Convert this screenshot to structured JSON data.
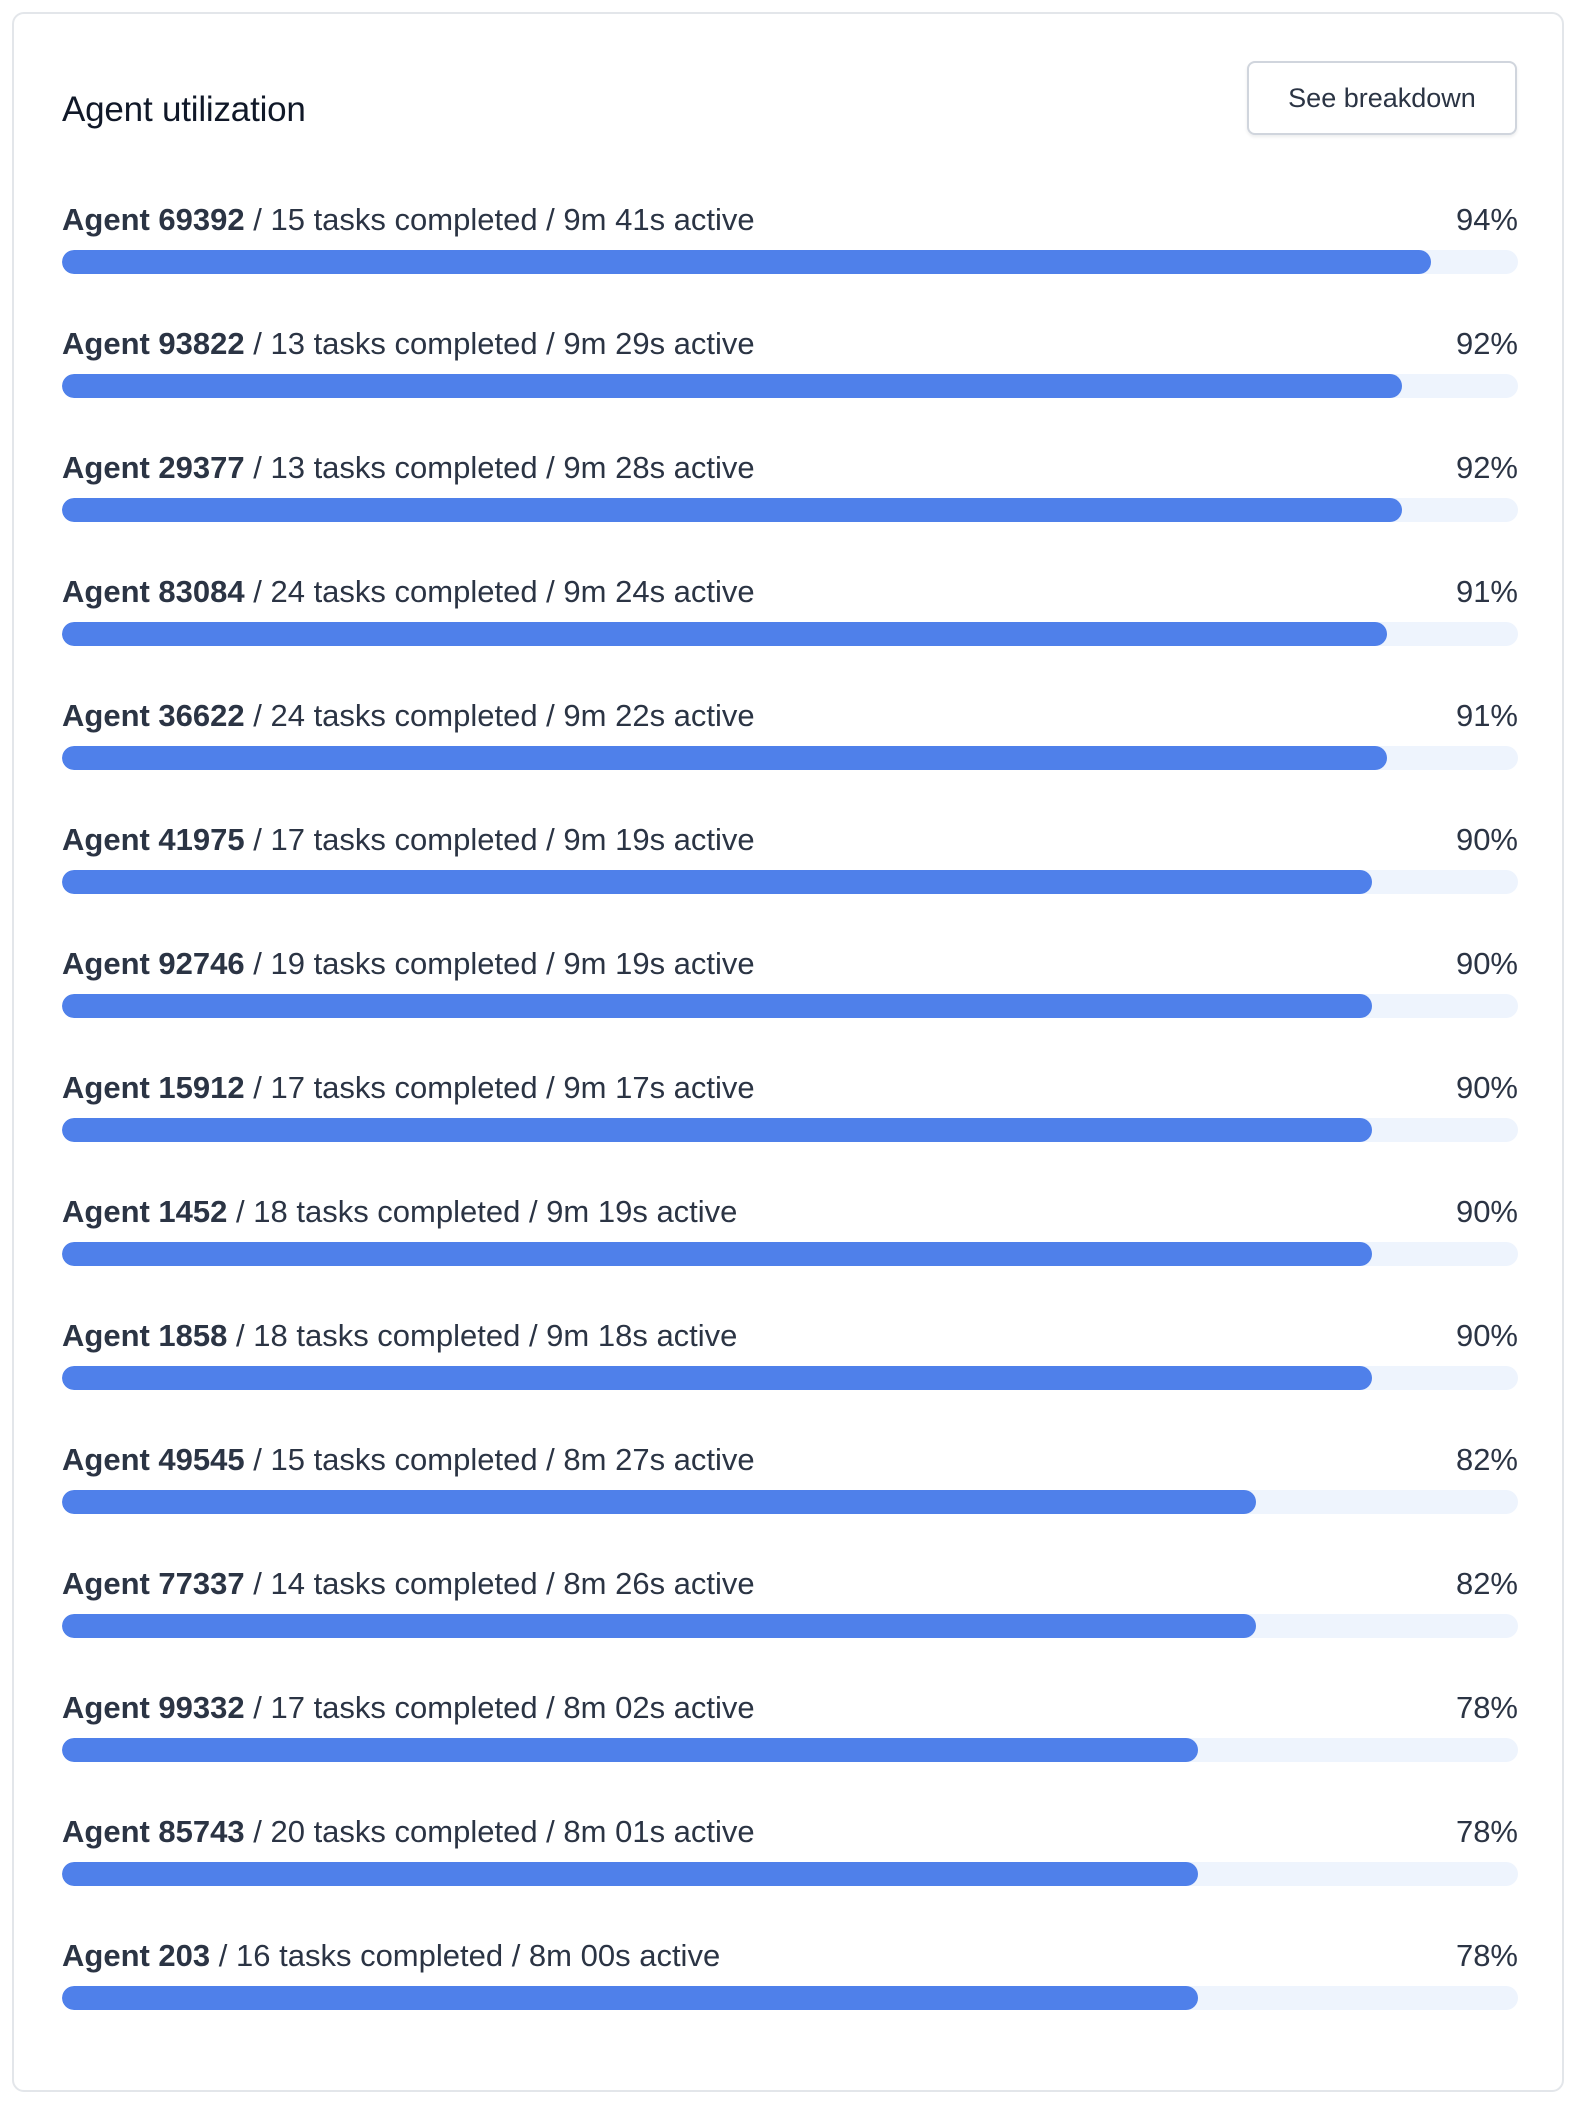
{
  "panel": {
    "title": "Agent utilization",
    "breakdown_label": "See breakdown"
  },
  "colors": {
    "bar_fill": "#4f80ea",
    "bar_track": "#eef4fd"
  },
  "agents": [
    {
      "name": "Agent 69392",
      "details": " / 15 tasks completed / 9m 41s active",
      "percent_label": "94%",
      "utilization": 94
    },
    {
      "name": "Agent 93822",
      "details": " / 13 tasks completed / 9m 29s active",
      "percent_label": "92%",
      "utilization": 92
    },
    {
      "name": "Agent 29377",
      "details": " / 13 tasks completed / 9m 28s active",
      "percent_label": "92%",
      "utilization": 92
    },
    {
      "name": "Agent 83084",
      "details": " / 24 tasks completed / 9m 24s active",
      "percent_label": "91%",
      "utilization": 91
    },
    {
      "name": "Agent 36622",
      "details": " / 24 tasks completed / 9m 22s active",
      "percent_label": "91%",
      "utilization": 91
    },
    {
      "name": "Agent 41975",
      "details": " / 17 tasks completed / 9m 19s active",
      "percent_label": "90%",
      "utilization": 90
    },
    {
      "name": "Agent 92746",
      "details": " / 19 tasks completed / 9m 19s active",
      "percent_label": "90%",
      "utilization": 90
    },
    {
      "name": "Agent 15912",
      "details": " / 17 tasks completed / 9m 17s active",
      "percent_label": "90%",
      "utilization": 90
    },
    {
      "name": "Agent 1452",
      "details": " / 18 tasks completed / 9m 19s active",
      "percent_label": "90%",
      "utilization": 90
    },
    {
      "name": "Agent 1858",
      "details": " / 18 tasks completed / 9m 18s active",
      "percent_label": "90%",
      "utilization": 90
    },
    {
      "name": "Agent 49545",
      "details": " / 15 tasks completed / 8m 27s active",
      "percent_label": "82%",
      "utilization": 82
    },
    {
      "name": "Agent 77337",
      "details": " / 14 tasks completed / 8m 26s active",
      "percent_label": "82%",
      "utilization": 82
    },
    {
      "name": "Agent 99332",
      "details": " / 17 tasks completed / 8m 02s active",
      "percent_label": "78%",
      "utilization": 78
    },
    {
      "name": "Agent 85743",
      "details": " / 20 tasks completed / 8m 01s active",
      "percent_label": "78%",
      "utilization": 78
    },
    {
      "name": "Agent 203",
      "details": " / 16 tasks completed / 8m 00s active",
      "percent_label": "78%",
      "utilization": 78
    }
  ]
}
